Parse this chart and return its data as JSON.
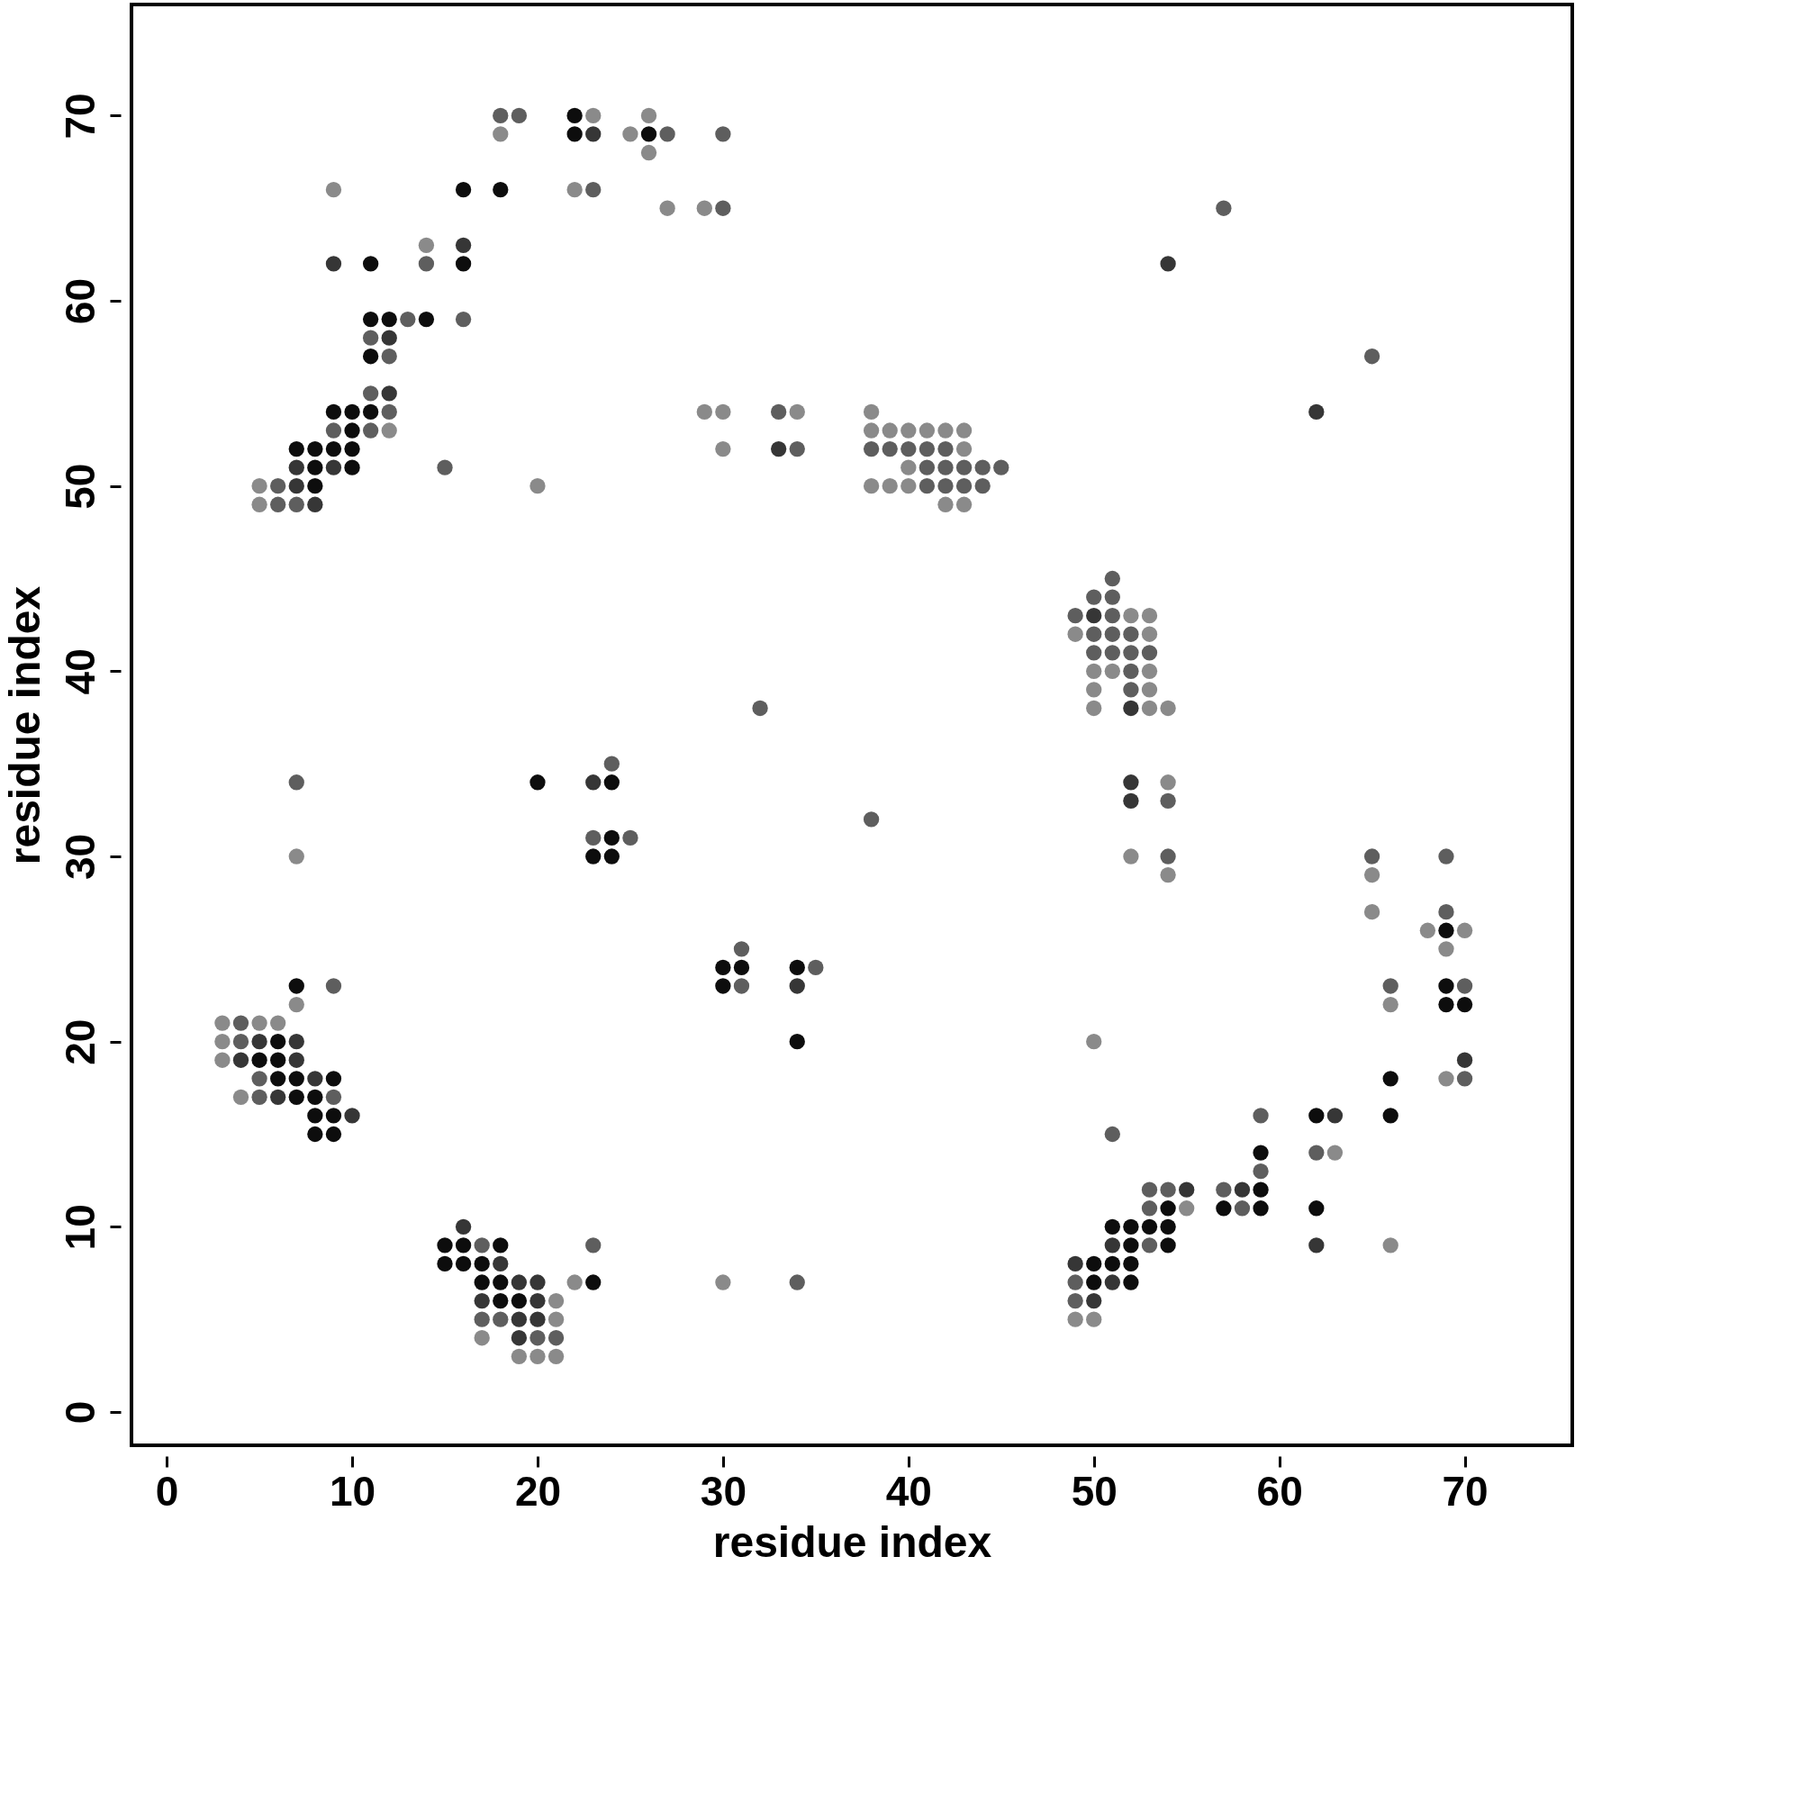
{
  "chart_data": {
    "type": "scatter",
    "xlabel": "residue index",
    "ylabel": "residue index",
    "xlim": [
      -1.9,
      75.8
    ],
    "ylim": [
      -1.8,
      76
    ],
    "xticks": [
      0,
      10,
      20,
      30,
      40,
      50,
      60,
      70
    ],
    "yticks": [
      0,
      10,
      20,
      30,
      40,
      50,
      60,
      70
    ],
    "grid": false,
    "marker": "circle",
    "series": [
      {
        "color": "#0d0d0d",
        "x": [
          22,
          22,
          26,
          16,
          18,
          11,
          16,
          11,
          12,
          14,
          11,
          9,
          10,
          11,
          10,
          7,
          8,
          9,
          10,
          8,
          10,
          8,
          20,
          24,
          24,
          23,
          24,
          69,
          30,
          31,
          34,
          7,
          30,
          69,
          69,
          70,
          6,
          34,
          5,
          6,
          6,
          7,
          9,
          66,
          7,
          8,
          8,
          9,
          62,
          66,
          8,
          9,
          59,
          59,
          54,
          57,
          59,
          62,
          51,
          52,
          53,
          54,
          52,
          54,
          50,
          51,
          52,
          50,
          52,
          15,
          16,
          18,
          15,
          16,
          17,
          17,
          18,
          23,
          18,
          19
        ],
        "values": [
          70,
          69,
          69,
          66,
          66,
          62,
          62,
          59,
          59,
          59,
          57,
          54,
          54,
          54,
          53,
          52,
          52,
          52,
          52,
          51,
          51,
          50,
          34,
          34,
          31,
          30,
          30,
          26,
          24,
          24,
          24,
          23,
          23,
          23,
          22,
          22,
          20,
          20,
          19,
          19,
          18,
          18,
          18,
          18,
          17,
          17,
          16,
          16,
          16,
          16,
          15,
          15,
          14,
          12,
          11,
          11,
          11,
          11,
          10,
          10,
          10,
          10,
          9,
          9,
          8,
          8,
          8,
          7,
          7,
          9,
          9,
          9,
          8,
          8,
          8,
          7,
          7,
          7,
          6,
          6
        ]
      },
      {
        "color": "#363636",
        "x": [
          23,
          16,
          9,
          54,
          12,
          12,
          33,
          7,
          9,
          7,
          8,
          62,
          50,
          52,
          52,
          52,
          23,
          34,
          5,
          7,
          4,
          7,
          8,
          70,
          6,
          10,
          63,
          55,
          58,
          51,
          62,
          49,
          51,
          50,
          16,
          18,
          19,
          20,
          17,
          20,
          19,
          20,
          19
        ],
        "values": [
          69,
          63,
          62,
          62,
          58,
          55,
          52,
          51,
          51,
          50,
          49,
          54,
          43,
          38,
          34,
          33,
          34,
          23,
          20,
          20,
          19,
          19,
          18,
          19,
          17,
          16,
          16,
          12,
          12,
          9,
          9,
          8,
          7,
          6,
          10,
          8,
          7,
          7,
          6,
          6,
          5,
          5,
          4
        ]
      },
      {
        "color": "#5e5e5e",
        "x": [
          18,
          19,
          27,
          30,
          23,
          30,
          57,
          14,
          13,
          16,
          11,
          12,
          65,
          11,
          12,
          33,
          9,
          11,
          34,
          38,
          39,
          40,
          41,
          42,
          15,
          41,
          42,
          43,
          44,
          45,
          6,
          41,
          42,
          43,
          44,
          6,
          7,
          51,
          50,
          51,
          49,
          51,
          50,
          51,
          52,
          50,
          51,
          52,
          53,
          52,
          52,
          32,
          7,
          24,
          54,
          38,
          23,
          25,
          54,
          65,
          69,
          69,
          31,
          35,
          9,
          31,
          66,
          70,
          4,
          4,
          5,
          70,
          5,
          9,
          59,
          51,
          62,
          59,
          53,
          54,
          57,
          53,
          58,
          53,
          17,
          23,
          49,
          34,
          49,
          17,
          18,
          20,
          21
        ],
        "values": [
          70,
          70,
          69,
          69,
          66,
          65,
          65,
          62,
          59,
          59,
          58,
          57,
          57,
          55,
          54,
          54,
          53,
          53,
          52,
          52,
          52,
          52,
          52,
          52,
          51,
          51,
          51,
          51,
          51,
          51,
          50,
          50,
          50,
          50,
          50,
          49,
          49,
          45,
          44,
          44,
          43,
          43,
          42,
          42,
          42,
          41,
          41,
          41,
          41,
          40,
          39,
          38,
          34,
          35,
          33,
          32,
          31,
          31,
          30,
          30,
          30,
          27,
          25,
          24,
          23,
          23,
          23,
          23,
          21,
          20,
          18,
          18,
          17,
          17,
          16,
          15,
          14,
          13,
          12,
          12,
          12,
          11,
          11,
          9,
          9,
          9,
          7,
          7,
          6,
          5,
          5,
          4,
          4
        ]
      },
      {
        "color": "#8a8a8a",
        "x": [
          23,
          26,
          18,
          25,
          26,
          9,
          22,
          27,
          29,
          14,
          12,
          29,
          30,
          34,
          38,
          38,
          39,
          40,
          41,
          42,
          43,
          30,
          43,
          40,
          5,
          20,
          38,
          39,
          40,
          5,
          42,
          43,
          52,
          53,
          49,
          53,
          50,
          51,
          53,
          50,
          53,
          50,
          53,
          54,
          54,
          7,
          52,
          54,
          65,
          65,
          68,
          70,
          69,
          7,
          66,
          3,
          5,
          6,
          3,
          50,
          3,
          69,
          4,
          63,
          55,
          66,
          49,
          50,
          22,
          30,
          21,
          21,
          17,
          19,
          20,
          21
        ],
        "values": [
          70,
          70,
          69,
          69,
          68,
          66,
          66,
          65,
          65,
          63,
          53,
          54,
          54,
          54,
          54,
          53,
          53,
          53,
          53,
          53,
          53,
          52,
          52,
          51,
          50,
          50,
          50,
          50,
          50,
          49,
          49,
          49,
          43,
          43,
          42,
          42,
          40,
          40,
          40,
          39,
          39,
          38,
          38,
          38,
          34,
          30,
          30,
          29,
          29,
          27,
          26,
          26,
          25,
          22,
          22,
          21,
          21,
          21,
          20,
          20,
          19,
          18,
          17,
          14,
          11,
          9,
          5,
          5,
          7,
          7,
          6,
          5,
          4,
          3,
          3,
          3
        ]
      }
    ]
  }
}
